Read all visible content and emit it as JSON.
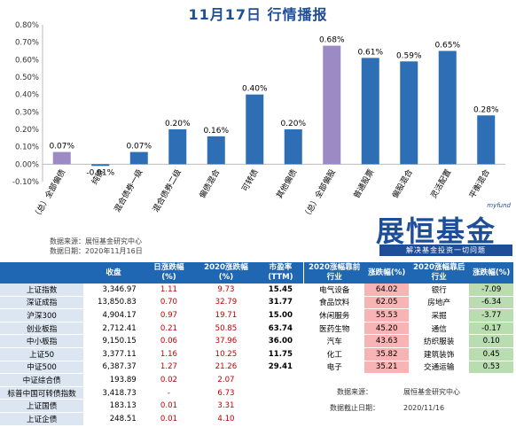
{
  "title": "11月17日  行情播报",
  "source": {
    "label1": "数据来源：",
    "value1": "展恒基金研究中心",
    "label2": "数据日期：",
    "value2": "2020年11月16日"
  },
  "logo": {
    "small": "myfund",
    "main": "展恒基金",
    "sub": "解决基金投资一切问题"
  },
  "chart_data": {
    "type": "bar",
    "categories": [
      "（总）全部偏债",
      "纯债",
      "混合债券一级",
      "混合债券二级",
      "偏债混合",
      "可转债",
      "其他偏债",
      "（总）全部偏股",
      "普通股票",
      "偏股混合",
      "灵活配置",
      "平衡混合"
    ],
    "values": [
      0.07,
      -0.01,
      0.07,
      0.2,
      0.16,
      0.4,
      0.2,
      0.68,
      0.61,
      0.59,
      0.65,
      0.28
    ],
    "data_labels": [
      "0.07%",
      "-0.01%",
      "0.07%",
      "0.20%",
      "0.16%",
      "0.40%",
      "0.20%",
      "0.68%",
      "0.61%",
      "0.59%",
      "0.65%",
      "0.28%"
    ],
    "highlight_index": [
      0,
      7
    ],
    "colors": {
      "normal": "#2e6eb5",
      "highlight": "#9b8ac4"
    },
    "ylim": [
      -0.1,
      0.8
    ],
    "yticks": [
      "-0.10%",
      "0.00%",
      "0.10%",
      "0.20%",
      "0.30%",
      "0.40%",
      "0.50%",
      "0.60%",
      "0.70%",
      "0.80%"
    ],
    "ytick_values": [
      -0.1,
      0.0,
      0.1,
      0.2,
      0.3,
      0.4,
      0.5,
      0.6,
      0.7,
      0.8
    ]
  },
  "left_table": {
    "headers": [
      "",
      "收盘",
      "日涨跌幅\n(%)",
      "2020涨跌幅\n(%)",
      "市盈率\n(TTM)"
    ],
    "rows": [
      {
        "name": "上证指数",
        "close": "3,346.97",
        "chg": "1.11",
        "ytd": "9.73",
        "pe": "15.45"
      },
      {
        "name": "深证成指",
        "close": "13,850.83",
        "chg": "0.70",
        "ytd": "32.79",
        "pe": "31.77"
      },
      {
        "name": "沪深300",
        "close": "4,904.17",
        "chg": "0.97",
        "ytd": "19.71",
        "pe": "15.00"
      },
      {
        "name": "创业板指",
        "close": "2,712.41",
        "chg": "0.21",
        "ytd": "50.85",
        "pe": "63.74"
      },
      {
        "name": "中小板指",
        "close": "9,150.15",
        "chg": "0.06",
        "ytd": "37.96",
        "pe": "36.00"
      },
      {
        "name": "上证50",
        "close": "3,377.11",
        "chg": "1.16",
        "ytd": "10.25",
        "pe": "11.75"
      },
      {
        "name": "中证500",
        "close": "6,387.37",
        "chg": "1.27",
        "ytd": "21.26",
        "pe": "29.41"
      },
      {
        "name": "中证综合债",
        "close": "193.89",
        "chg": "0.02",
        "ytd": "2.07",
        "pe": ""
      },
      {
        "name": "标普中国可转债指数",
        "close": "3,418.73",
        "chg": "-",
        "ytd": "6.73",
        "pe": ""
      },
      {
        "name": "上证国债",
        "close": "183.13",
        "chg": "0.01",
        "ytd": "3.31",
        "pe": ""
      },
      {
        "name": "上证企债",
        "close": "248.51",
        "chg": "0.01",
        "ytd": "4.10",
        "pe": ""
      }
    ]
  },
  "right_table": {
    "headers": [
      "2020涨幅靠前\n行业",
      "涨跌幅(%)",
      "2020涨幅靠后\n行业",
      "涨跌幅(%)"
    ],
    "colors": {
      "top_bg": "#f8b4b4",
      "bottom_bg": "#b9dcb0"
    },
    "rows": [
      {
        "top": "电气设备",
        "top_v": "64.02",
        "bot": "银行",
        "bot_v": "-7.09"
      },
      {
        "top": "食品饮料",
        "top_v": "62.05",
        "bot": "房地产",
        "bot_v": "-6.34"
      },
      {
        "top": "休闲服务",
        "top_v": "55.53",
        "bot": "采掘",
        "bot_v": "-3.77"
      },
      {
        "top": "医药生物",
        "top_v": "45.20",
        "bot": "通信",
        "bot_v": "-0.17"
      },
      {
        "top": "汽车",
        "top_v": "43.63",
        "bot": "纺织服装",
        "bot_v": "0.10"
      },
      {
        "top": "化工",
        "top_v": "35.82",
        "bot": "建筑装饰",
        "bot_v": "0.45"
      },
      {
        "top": "电子",
        "top_v": "35.21",
        "bot": "交通运输",
        "bot_v": "0.53"
      }
    ]
  },
  "bottom_source": {
    "label1": "数据来源：",
    "value1": "展恒基金研究中心",
    "label2": "数据截止日期：",
    "value2": "2020/11/16"
  }
}
